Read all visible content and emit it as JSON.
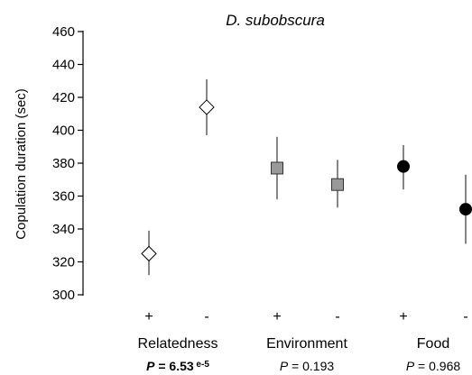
{
  "chart_data": {
    "type": "scatter",
    "title": "D. subobscura",
    "ylabel": "Copulation duration (sec)",
    "ylim": [
      300,
      460
    ],
    "yticks": [
      300,
      320,
      340,
      360,
      380,
      400,
      420,
      440,
      460
    ],
    "grid": false,
    "groups": [
      {
        "name": "Relatedness",
        "p_prefix": "P",
        "p_value": "6.53",
        "p_exp": "e-5",
        "p_bold": true,
        "marker": "diamond",
        "color": "#ffffff",
        "points": [
          {
            "label": "+",
            "y": 325,
            "err_low": 312,
            "err_high": 339
          },
          {
            "label": "-",
            "y": 414,
            "err_low": 397,
            "err_high": 431
          }
        ]
      },
      {
        "name": "Environment",
        "p_prefix": "P",
        "p_value": "0.193",
        "p_exp": "",
        "p_bold": false,
        "marker": "square",
        "color": "#999999",
        "points": [
          {
            "label": "+",
            "y": 377,
            "err_low": 358,
            "err_high": 396
          },
          {
            "label": "-",
            "y": 367,
            "err_low": 353,
            "err_high": 382
          }
        ]
      },
      {
        "name": "Food",
        "p_prefix": "P",
        "p_value": "0.968",
        "p_exp": "",
        "p_bold": false,
        "marker": "circle",
        "color": "#000000",
        "points": [
          {
            "label": "+",
            "y": 378,
            "err_low": 364,
            "err_high": 391
          },
          {
            "label": "-",
            "y": 352,
            "err_low": 331,
            "err_high": 373
          }
        ]
      }
    ]
  }
}
